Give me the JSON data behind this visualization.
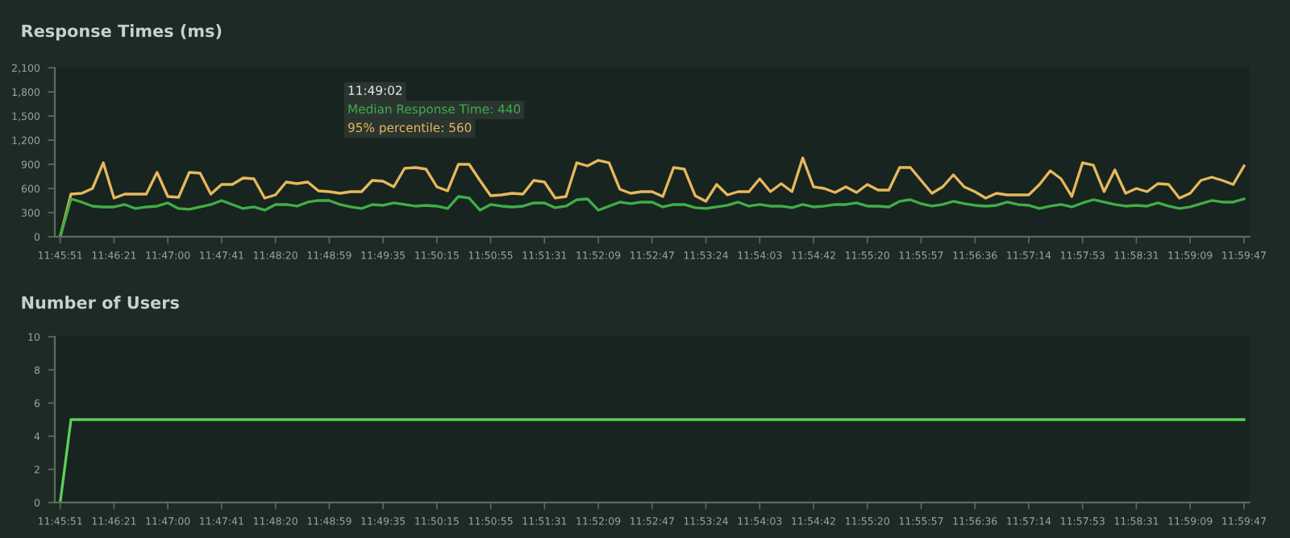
{
  "chart_data": [
    {
      "type": "line",
      "title": "Response Times (ms)",
      "categories": [
        "11:45:51",
        null,
        null,
        null,
        null,
        "11:46:21",
        null,
        null,
        null,
        null,
        "11:47:00",
        null,
        null,
        null,
        null,
        "11:47:41",
        null,
        null,
        null,
        null,
        "11:48:20",
        null,
        null,
        null,
        null,
        "11:48:59",
        null,
        null,
        null,
        null,
        "11:49:35",
        null,
        null,
        null,
        null,
        "11:50:15",
        null,
        null,
        null,
        null,
        "11:50:55",
        null,
        null,
        null,
        null,
        "11:51:31",
        null,
        null,
        null,
        null,
        "11:52:09",
        null,
        null,
        null,
        null,
        "11:52:47",
        null,
        null,
        null,
        null,
        "11:53:24",
        null,
        null,
        null,
        null,
        "11:54:03",
        null,
        null,
        null,
        null,
        "11:54:42",
        null,
        null,
        null,
        null,
        "11:55:20",
        null,
        null,
        null,
        null,
        "11:55:57",
        null,
        null,
        null,
        null,
        "11:56:36",
        null,
        null,
        null,
        null,
        "11:57:14",
        null,
        null,
        null,
        null,
        "11:57:53",
        null,
        null,
        null,
        null,
        "11:58:31",
        null,
        null,
        null,
        null,
        "11:59:09",
        null,
        null,
        null,
        null,
        "11:59:47"
      ],
      "series": [
        {
          "color": "#e6b85c",
          "values": [
            0,
            530,
            540,
            600,
            920,
            480,
            530,
            530,
            530,
            800,
            500,
            490,
            800,
            790,
            530,
            650,
            650,
            730,
            720,
            480,
            520,
            680,
            660,
            680,
            570,
            560,
            540,
            560,
            560,
            700,
            690,
            620,
            850,
            860,
            840,
            620,
            570,
            900,
            900,
            700,
            510,
            520,
            540,
            530,
            700,
            680,
            480,
            500,
            920,
            880,
            950,
            920,
            590,
            540,
            560,
            560,
            500,
            860,
            840,
            510,
            440,
            650,
            520,
            560,
            560,
            720,
            560,
            660,
            560,
            980,
            620,
            600,
            550,
            620,
            550,
            650,
            580,
            580,
            860,
            860,
            700,
            540,
            620,
            770,
            620,
            560,
            480,
            540,
            520,
            520,
            520,
            650,
            820,
            720,
            500,
            920,
            890,
            560,
            830,
            540,
            600,
            560,
            660,
            650,
            480,
            540,
            700,
            740,
            700,
            650,
            880
          ]
        },
        {
          "color": "#3fae49",
          "values": [
            0,
            470,
            430,
            380,
            370,
            370,
            400,
            350,
            370,
            380,
            420,
            350,
            340,
            370,
            400,
            450,
            400,
            350,
            370,
            330,
            400,
            400,
            380,
            430,
            450,
            450,
            400,
            370,
            350,
            400,
            390,
            420,
            400,
            380,
            390,
            380,
            350,
            500,
            480,
            330,
            400,
            380,
            370,
            380,
            420,
            420,
            360,
            380,
            460,
            470,
            330,
            380,
            430,
            410,
            430,
            430,
            370,
            400,
            400,
            360,
            350,
            370,
            390,
            430,
            380,
            400,
            380,
            380,
            360,
            400,
            370,
            380,
            400,
            400,
            420,
            380,
            380,
            370,
            440,
            460,
            410,
            380,
            400,
            440,
            410,
            390,
            380,
            390,
            430,
            400,
            390,
            350,
            380,
            400,
            370,
            420,
            460,
            430,
            400,
            380,
            390,
            380,
            420,
            380,
            350,
            370,
            410,
            450,
            430,
            430,
            470
          ]
        }
      ],
      "ylim": [
        0,
        2100
      ],
      "yticks": [
        0,
        300,
        600,
        900,
        {
          "value": 1200,
          "label": "1,200"
        },
        {
          "value": 1500,
          "label": "1,500"
        },
        {
          "value": 1800,
          "label": "1,800"
        },
        {
          "value": 2100,
          "label": "2,100"
        }
      ],
      "annotations": [
        "11:49:02",
        "Median Response Time: 440",
        "95% percentile: 560"
      ]
    },
    {
      "type": "line",
      "title": "Number of Users",
      "categories": [
        "11:45:51",
        null,
        null,
        null,
        null,
        "11:46:21",
        null,
        null,
        null,
        null,
        "11:47:00",
        null,
        null,
        null,
        null,
        "11:47:41",
        null,
        null,
        null,
        null,
        "11:48:20",
        null,
        null,
        null,
        null,
        "11:48:59",
        null,
        null,
        null,
        null,
        "11:49:35",
        null,
        null,
        null,
        null,
        "11:50:15",
        null,
        null,
        null,
        null,
        "11:50:55",
        null,
        null,
        null,
        null,
        "11:51:31",
        null,
        null,
        null,
        null,
        "11:52:09",
        null,
        null,
        null,
        null,
        "11:52:47",
        null,
        null,
        null,
        null,
        "11:53:24",
        null,
        null,
        null,
        null,
        "11:54:03",
        null,
        null,
        null,
        null,
        "11:54:42",
        null,
        null,
        null,
        null,
        "11:55:20",
        null,
        null,
        null,
        null,
        "11:55:57",
        null,
        null,
        null,
        null,
        "11:56:36",
        null,
        null,
        null,
        null,
        "11:57:14",
        null,
        null,
        null,
        null,
        "11:57:53",
        null,
        null,
        null,
        null,
        "11:58:31",
        null,
        null,
        null,
        null,
        "11:59:09",
        null,
        null,
        null,
        null,
        "11:59:47"
      ],
      "series": [
        {
          "color": "#5ccf5c",
          "values": [
            0,
            5,
            5,
            5,
            5,
            5,
            5,
            5,
            5,
            5,
            5,
            5,
            5,
            5,
            5,
            5,
            5,
            5,
            5,
            5,
            5,
            5,
            5,
            5,
            5,
            5,
            5,
            5,
            5,
            5,
            5,
            5,
            5,
            5,
            5,
            5,
            5,
            5,
            5,
            5,
            5,
            5,
            5,
            5,
            5,
            5,
            5,
            5,
            5,
            5,
            5,
            5,
            5,
            5,
            5,
            5,
            5,
            5,
            5,
            5,
            5,
            5,
            5,
            5,
            5,
            5,
            5,
            5,
            5,
            5,
            5,
            5,
            5,
            5,
            5,
            5,
            5,
            5,
            5,
            5,
            5,
            5,
            5,
            5,
            5,
            5,
            5,
            5,
            5,
            5,
            5,
            5,
            5,
            5,
            5,
            5,
            5,
            5,
            5,
            5,
            5,
            5,
            5,
            5,
            5,
            5,
            5,
            5,
            5,
            5,
            5
          ]
        }
      ],
      "ylim": [
        0,
        10
      ],
      "yticks": [
        0,
        2,
        4,
        6,
        8,
        10
      ]
    }
  ]
}
